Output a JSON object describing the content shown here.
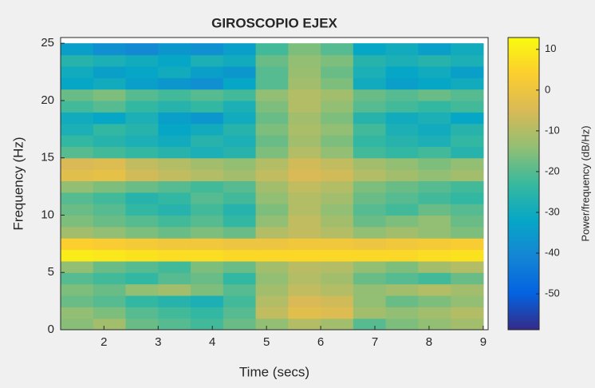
{
  "chart_data": {
    "type": "heatmap",
    "title": "GIROSCOPIO EJEX",
    "x_label": "Time (secs)",
    "y_label": "Frequency (Hz)",
    "colorbar_label": "Power/frequency (dB/Hz)",
    "x": [
      1.5,
      2.1,
      2.7,
      3.3,
      3.9,
      4.5,
      5.1,
      5.7,
      6.3,
      6.9,
      7.5,
      8.1,
      8.7
    ],
    "y": [
      0.5,
      1.5,
      2.5,
      3.5,
      4.5,
      5.5,
      6.5,
      7.5,
      8.5,
      9.5,
      10.5,
      11.5,
      12.5,
      13.5,
      14.5,
      15.5,
      16.5,
      17.5,
      18.5,
      19.5,
      20.5,
      21.5,
      22.5,
      23.5,
      24.5
    ],
    "z": [
      [
        -15,
        -12,
        -18,
        -20,
        -22,
        -18,
        -14,
        -10,
        -12,
        -20,
        -16,
        -14,
        -12
      ],
      [
        -14,
        -16,
        -20,
        -22,
        -24,
        -20,
        -8,
        -3,
        -4,
        -12,
        -14,
        -12,
        -10
      ],
      [
        -18,
        -20,
        -24,
        -26,
        -28,
        -22,
        -10,
        -5,
        -6,
        -14,
        -18,
        -16,
        -14
      ],
      [
        -16,
        -18,
        -14,
        -12,
        -16,
        -20,
        -12,
        -8,
        -10,
        -14,
        -12,
        -10,
        -12
      ],
      [
        -20,
        -22,
        -24,
        -20,
        -18,
        -24,
        -14,
        -10,
        -12,
        -18,
        -20,
        -22,
        -18
      ],
      [
        -14,
        -18,
        -20,
        -22,
        -16,
        -18,
        -12,
        -9,
        -10,
        -14,
        -16,
        -12,
        -10
      ],
      [
        10,
        9,
        8,
        7,
        7,
        6,
        6,
        6,
        6,
        6,
        6,
        7,
        8
      ],
      [
        4,
        3,
        2,
        1,
        1,
        0,
        0,
        1,
        1,
        0,
        1,
        2,
        3
      ],
      [
        -12,
        -14,
        -16,
        -18,
        -16,
        -18,
        -10,
        -8,
        -10,
        -14,
        -12,
        -14,
        -16
      ],
      [
        -16,
        -18,
        -20,
        -22,
        -20,
        -24,
        -14,
        -8,
        -12,
        -18,
        -16,
        -14,
        -18
      ],
      [
        -18,
        -20,
        -24,
        -26,
        -22,
        -26,
        -16,
        -10,
        -14,
        -20,
        -22,
        -18,
        -20
      ],
      [
        -20,
        -22,
        -26,
        -24,
        -20,
        -22,
        -14,
        -10,
        -12,
        -18,
        -20,
        -22,
        -24
      ],
      [
        -14,
        -16,
        -18,
        -20,
        -22,
        -20,
        -12,
        -8,
        -10,
        -16,
        -18,
        -20,
        -22
      ],
      [
        -3,
        -2,
        -6,
        -8,
        -10,
        -12,
        -8,
        -5,
        -6,
        -10,
        -12,
        -14,
        -12
      ],
      [
        -5,
        -4,
        -8,
        -10,
        -12,
        -14,
        -10,
        -6,
        -8,
        -12,
        -14,
        -16,
        -14
      ],
      [
        -20,
        -22,
        -24,
        -26,
        -28,
        -26,
        -16,
        -10,
        -14,
        -22,
        -24,
        -22,
        -26
      ],
      [
        -24,
        -26,
        -28,
        -30,
        -26,
        -28,
        -18,
        -12,
        -16,
        -24,
        -26,
        -28,
        -24
      ],
      [
        -28,
        -24,
        -26,
        -32,
        -30,
        -26,
        -16,
        -11,
        -14,
        -22,
        -28,
        -30,
        -26
      ],
      [
        -30,
        -32,
        -28,
        -34,
        -36,
        -30,
        -18,
        -12,
        -16,
        -26,
        -30,
        -28,
        -32
      ],
      [
        -22,
        -20,
        -24,
        -26,
        -24,
        -28,
        -16,
        -10,
        -14,
        -20,
        -22,
        -24,
        -22
      ],
      [
        -18,
        -16,
        -20,
        -22,
        -20,
        -22,
        -14,
        -10,
        -12,
        -18,
        -20,
        -18,
        -20
      ],
      [
        -32,
        -30,
        -34,
        -36,
        -38,
        -32,
        -20,
        -12,
        -16,
        -30,
        -34,
        -32,
        -30
      ],
      [
        -30,
        -34,
        -32,
        -30,
        -34,
        -36,
        -20,
        -13,
        -18,
        -28,
        -32,
        -30,
        -34
      ],
      [
        -26,
        -28,
        -30,
        -32,
        -28,
        -30,
        -18,
        -14,
        -16,
        -26,
        -28,
        -26,
        -28
      ],
      [
        -34,
        -38,
        -40,
        -36,
        -38,
        -34,
        -22,
        -16,
        -20,
        -32,
        -30,
        -34,
        -30
      ]
    ],
    "xlim": [
      1.2,
      9.09
    ],
    "ylim": [
      0,
      25.5
    ],
    "xticks": [
      2,
      3,
      4,
      5,
      6,
      7,
      8,
      9
    ],
    "yticks": [
      0,
      5,
      10,
      15,
      20,
      25
    ],
    "clim": [
      -58.8,
      12.9
    ],
    "cticks": [
      -50,
      -40,
      -30,
      -20,
      -10,
      0,
      10
    ],
    "colormap": [
      "#352a87",
      "#0363e1",
      "#1485d4",
      "#06a7c6",
      "#38b99e",
      "#92bf73",
      "#d9ba56",
      "#fcce2e",
      "#f9fb0e"
    ]
  }
}
